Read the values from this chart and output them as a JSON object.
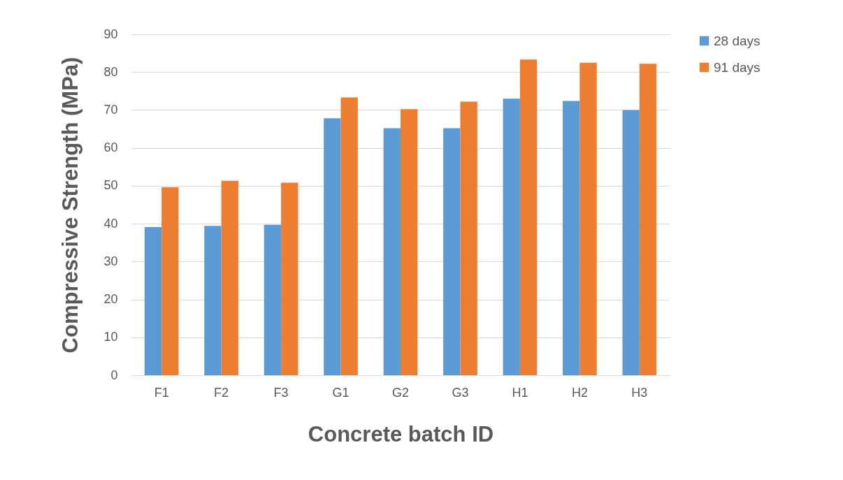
{
  "chart_data": {
    "type": "bar",
    "xlabel": "Concrete batch ID",
    "ylabel": "Compressive Strength (MPa)",
    "categories": [
      "F1",
      "F2",
      "F3",
      "G1",
      "G2",
      "G3",
      "H1",
      "H2",
      "H3"
    ],
    "series": [
      {
        "name": "28 days",
        "color": "#5b9bd5",
        "values": [
          39.1,
          39.4,
          39.7,
          67.8,
          65.2,
          65.2,
          73.0,
          72.4,
          70.0
        ]
      },
      {
        "name": "91 days",
        "color": "#ed7d31",
        "values": [
          49.6,
          51.3,
          50.8,
          73.3,
          70.2,
          72.2,
          83.3,
          82.5,
          82.2
        ]
      }
    ],
    "ylim": [
      0,
      90
    ],
    "yticks": [
      0,
      10,
      20,
      30,
      40,
      50,
      60,
      70,
      80,
      90
    ],
    "grid": "y",
    "legend": "right"
  }
}
